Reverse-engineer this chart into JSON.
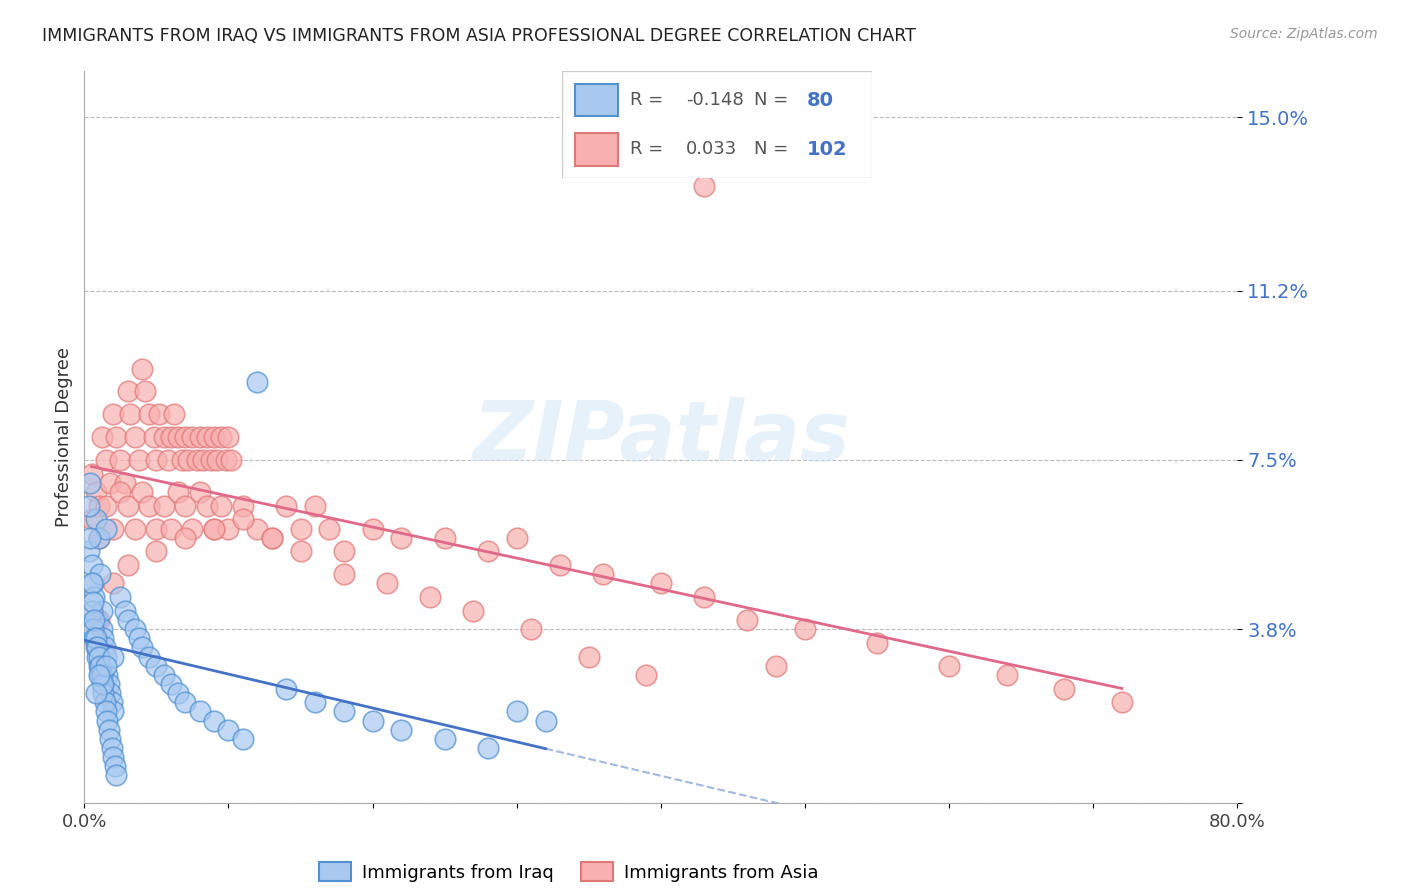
{
  "title": "IMMIGRANTS FROM IRAQ VS IMMIGRANTS FROM ASIA PROFESSIONAL DEGREE CORRELATION CHART",
  "source": "Source: ZipAtlas.com",
  "ylabel": "Professional Degree",
  "xlim": [
    0.0,
    0.8
  ],
  "ylim": [
    0.0,
    0.16
  ],
  "ytick_vals": [
    0.0,
    0.038,
    0.075,
    0.112,
    0.15
  ],
  "ytick_labels": [
    "",
    "3.8%",
    "7.5%",
    "11.2%",
    "15.0%"
  ],
  "xtick_vals": [
    0.0,
    0.1,
    0.2,
    0.3,
    0.4,
    0.5,
    0.6,
    0.7,
    0.8
  ],
  "xtick_labels": [
    "0.0%",
    "",
    "",
    "",
    "",
    "",
    "",
    "",
    "80.0%"
  ],
  "R_iraq": -0.148,
  "N_iraq": 80,
  "R_asia": 0.033,
  "N_asia": 102,
  "color_iraq_fill": "#a8c8f0",
  "color_iraq_edge": "#5090d0",
  "color_iraq_line": "#4472c4",
  "color_asia_fill": "#f8b0b0",
  "color_asia_edge": "#e07878",
  "color_asia_line": "#e06888",
  "watermark": "ZIPatlas",
  "legend_R_iraq": "-0.148",
  "legend_N_iraq": "80",
  "legend_R_asia": "0.033",
  "legend_N_asia": "102",
  "iraq_x": [
    0.003,
    0.005,
    0.006,
    0.007,
    0.008,
    0.009,
    0.01,
    0.01,
    0.011,
    0.012,
    0.012,
    0.013,
    0.014,
    0.015,
    0.015,
    0.016,
    0.017,
    0.018,
    0.019,
    0.02,
    0.003,
    0.004,
    0.005,
    0.006,
    0.007,
    0.008,
    0.009,
    0.01,
    0.011,
    0.012,
    0.013,
    0.014,
    0.015,
    0.016,
    0.017,
    0.018,
    0.019,
    0.02,
    0.021,
    0.022,
    0.004,
    0.005,
    0.006,
    0.007,
    0.008,
    0.009,
    0.01,
    0.011,
    0.012,
    0.013,
    0.025,
    0.028,
    0.03,
    0.035,
    0.038,
    0.04,
    0.045,
    0.05,
    0.055,
    0.06,
    0.065,
    0.07,
    0.08,
    0.09,
    0.1,
    0.11,
    0.12,
    0.14,
    0.16,
    0.18,
    0.2,
    0.22,
    0.25,
    0.28,
    0.3,
    0.32,
    0.02,
    0.015,
    0.01,
    0.008
  ],
  "iraq_y": [
    0.055,
    0.052,
    0.048,
    0.045,
    0.062,
    0.04,
    0.058,
    0.035,
    0.05,
    0.042,
    0.038,
    0.036,
    0.034,
    0.032,
    0.06,
    0.028,
    0.026,
    0.024,
    0.022,
    0.02,
    0.065,
    0.058,
    0.042,
    0.038,
    0.036,
    0.034,
    0.032,
    0.03,
    0.028,
    0.026,
    0.024,
    0.022,
    0.02,
    0.018,
    0.016,
    0.014,
    0.012,
    0.01,
    0.008,
    0.006,
    0.07,
    0.048,
    0.044,
    0.04,
    0.036,
    0.034,
    0.032,
    0.03,
    0.028,
    0.026,
    0.045,
    0.042,
    0.04,
    0.038,
    0.036,
    0.034,
    0.032,
    0.03,
    0.028,
    0.026,
    0.024,
    0.022,
    0.02,
    0.018,
    0.016,
    0.014,
    0.092,
    0.025,
    0.022,
    0.02,
    0.018,
    0.016,
    0.014,
    0.012,
    0.02,
    0.018,
    0.032,
    0.03,
    0.028,
    0.024
  ],
  "asia_x": [
    0.005,
    0.008,
    0.01,
    0.012,
    0.015,
    0.018,
    0.02,
    0.022,
    0.025,
    0.028,
    0.03,
    0.032,
    0.035,
    0.038,
    0.04,
    0.042,
    0.045,
    0.048,
    0.05,
    0.052,
    0.055,
    0.058,
    0.06,
    0.062,
    0.065,
    0.068,
    0.07,
    0.072,
    0.075,
    0.078,
    0.08,
    0.082,
    0.085,
    0.088,
    0.09,
    0.092,
    0.095,
    0.098,
    0.1,
    0.102,
    0.005,
    0.01,
    0.015,
    0.02,
    0.025,
    0.03,
    0.035,
    0.04,
    0.045,
    0.05,
    0.055,
    0.06,
    0.065,
    0.07,
    0.075,
    0.08,
    0.085,
    0.09,
    0.095,
    0.1,
    0.11,
    0.12,
    0.13,
    0.14,
    0.15,
    0.16,
    0.17,
    0.18,
    0.2,
    0.22,
    0.25,
    0.28,
    0.3,
    0.33,
    0.36,
    0.4,
    0.43,
    0.46,
    0.5,
    0.55,
    0.6,
    0.64,
    0.68,
    0.72,
    0.01,
    0.02,
    0.03,
    0.05,
    0.07,
    0.09,
    0.11,
    0.13,
    0.15,
    0.18,
    0.21,
    0.24,
    0.27,
    0.31,
    0.35,
    0.39,
    0.43,
    0.48
  ],
  "asia_y": [
    0.072,
    0.068,
    0.065,
    0.08,
    0.075,
    0.07,
    0.085,
    0.08,
    0.075,
    0.07,
    0.09,
    0.085,
    0.08,
    0.075,
    0.095,
    0.09,
    0.085,
    0.08,
    0.075,
    0.085,
    0.08,
    0.075,
    0.08,
    0.085,
    0.08,
    0.075,
    0.08,
    0.075,
    0.08,
    0.075,
    0.08,
    0.075,
    0.08,
    0.075,
    0.08,
    0.075,
    0.08,
    0.075,
    0.08,
    0.075,
    0.062,
    0.058,
    0.065,
    0.06,
    0.068,
    0.065,
    0.06,
    0.068,
    0.065,
    0.06,
    0.065,
    0.06,
    0.068,
    0.065,
    0.06,
    0.068,
    0.065,
    0.06,
    0.065,
    0.06,
    0.065,
    0.06,
    0.058,
    0.065,
    0.06,
    0.065,
    0.06,
    0.055,
    0.06,
    0.058,
    0.058,
    0.055,
    0.058,
    0.052,
    0.05,
    0.048,
    0.045,
    0.04,
    0.038,
    0.035,
    0.03,
    0.028,
    0.025,
    0.022,
    0.04,
    0.048,
    0.052,
    0.055,
    0.058,
    0.06,
    0.062,
    0.058,
    0.055,
    0.05,
    0.048,
    0.045,
    0.042,
    0.038,
    0.032,
    0.028,
    0.135,
    0.03
  ]
}
